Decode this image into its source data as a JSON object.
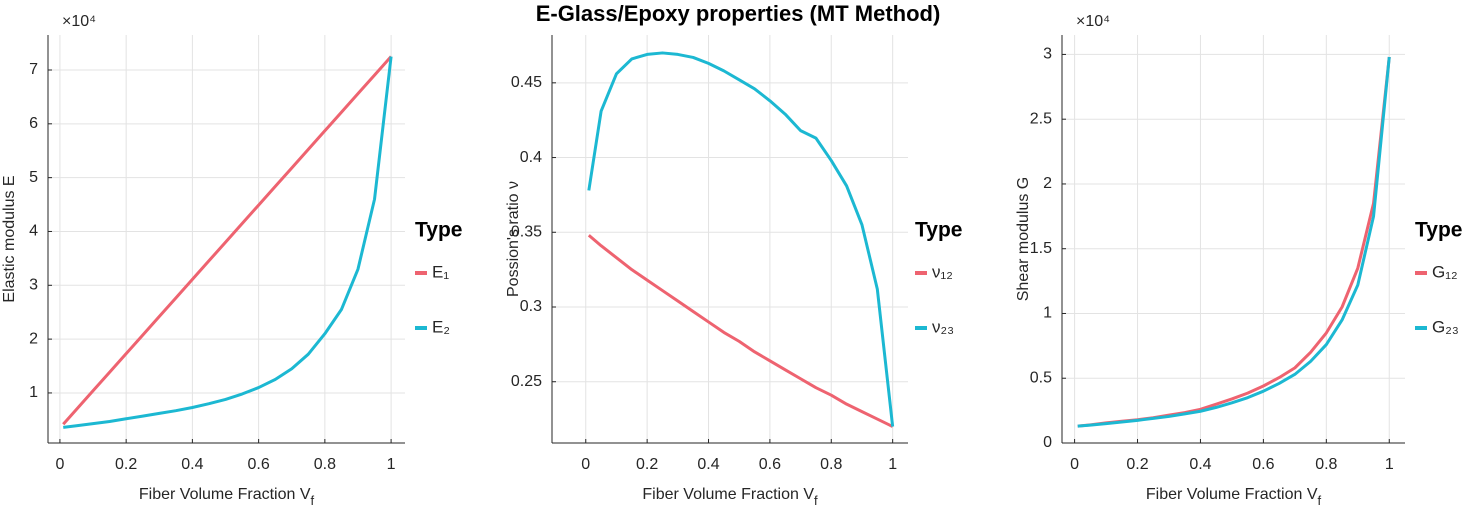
{
  "title": "E-Glass/Epoxy properties (MT Method)",
  "chart_data": [
    {
      "type": "line",
      "ylabel": "Elastic modulus E",
      "xlabel": {
        "text": "Fiber Volume Fraction V",
        "sub": "f"
      },
      "y_exponent": "×10⁴",
      "legend_title": "Type",
      "grid": true,
      "x": [
        0.01,
        0.05,
        0.1,
        0.15,
        0.2,
        0.25,
        0.3,
        0.35,
        0.4,
        0.45,
        0.5,
        0.55,
        0.6,
        0.65,
        0.7,
        0.75,
        0.8,
        0.85,
        0.9,
        0.95,
        1
      ],
      "xlim": [
        -0.036,
        1.042
      ],
      "xticks": [
        0,
        0.2,
        0.4,
        0.6,
        0.8,
        1
      ],
      "ylim": [
        0.07,
        7.65
      ],
      "yticks": [
        1,
        2,
        3,
        4,
        5,
        6,
        7
      ],
      "series": [
        {
          "name": "E₁",
          "color": "#EE6370",
          "values": [
            0.419,
            0.695,
            1.04,
            1.385,
            1.73,
            2.075,
            2.42,
            2.765,
            3.11,
            3.455,
            3.8,
            4.145,
            4.49,
            4.835,
            5.18,
            5.525,
            5.87,
            6.215,
            6.56,
            6.905,
            7.25
          ]
        },
        {
          "name": "E₂",
          "color": "#1CB8D2",
          "values": [
            0.36,
            0.39,
            0.43,
            0.47,
            0.52,
            0.57,
            0.62,
            0.67,
            0.73,
            0.8,
            0.88,
            0.98,
            1.1,
            1.25,
            1.45,
            1.72,
            2.1,
            2.55,
            3.3,
            4.6,
            7.25
          ]
        }
      ]
    },
    {
      "type": "line",
      "ylabel": "Possion's ratio ν",
      "xlabel": {
        "text": "Fiber Volume Fraction V",
        "sub": "f"
      },
      "legend_title": "Type",
      "grid": true,
      "x": [
        0.01,
        0.05,
        0.1,
        0.15,
        0.2,
        0.25,
        0.3,
        0.35,
        0.4,
        0.45,
        0.5,
        0.55,
        0.6,
        0.65,
        0.7,
        0.75,
        0.8,
        0.85,
        0.9,
        0.95,
        1
      ],
      "xlim": [
        -0.11,
        1.05
      ],
      "xticks": [
        0,
        0.2,
        0.4,
        0.6,
        0.8,
        1
      ],
      "ylim": [
        0.209,
        0.482
      ],
      "yticks": [
        0.25,
        0.3,
        0.35,
        0.4,
        0.45
      ],
      "series": [
        {
          "name": "ν₁₂",
          "color": "#EE6370",
          "values": [
            0.348,
            0.341,
            0.333,
            0.325,
            0.318,
            0.311,
            0.304,
            0.297,
            0.29,
            0.283,
            0.277,
            0.27,
            0.264,
            0.258,
            0.252,
            0.246,
            0.241,
            0.235,
            0.23,
            0.225,
            0.22
          ]
        },
        {
          "name": "ν₂₃",
          "color": "#1CB8D2",
          "values": [
            0.378,
            0.431,
            0.456,
            0.466,
            0.469,
            0.47,
            0.469,
            0.467,
            0.463,
            0.458,
            0.452,
            0.446,
            0.438,
            0.429,
            0.418,
            0.413,
            0.398,
            0.381,
            0.355,
            0.312,
            0.22
          ]
        }
      ]
    },
    {
      "type": "line",
      "ylabel": "Shear modulus G",
      "xlabel": {
        "text": "Fiber Volume Fraction V",
        "sub": "f"
      },
      "y_exponent": "×10⁴",
      "legend_title": "Type",
      "grid": true,
      "x": [
        0.01,
        0.05,
        0.1,
        0.15,
        0.2,
        0.25,
        0.3,
        0.35,
        0.4,
        0.45,
        0.5,
        0.55,
        0.6,
        0.65,
        0.7,
        0.75,
        0.8,
        0.85,
        0.9,
        0.95,
        1
      ],
      "xlim": [
        -0.04,
        1.05
      ],
      "xticks": [
        0,
        0.2,
        0.4,
        0.6,
        0.8,
        1
      ],
      "ylim": [
        0,
        3.15
      ],
      "yticks": [
        0,
        0.5,
        1,
        1.5,
        2,
        2.5,
        3
      ],
      "series": [
        {
          "name": "G₁₂",
          "color": "#EE6370",
          "values": [
            0.13,
            0.14,
            0.155,
            0.168,
            0.18,
            0.195,
            0.215,
            0.235,
            0.26,
            0.3,
            0.34,
            0.385,
            0.44,
            0.505,
            0.58,
            0.7,
            0.85,
            1.05,
            1.35,
            1.85,
            2.98
          ]
        },
        {
          "name": "G₂₃",
          "color": "#1CB8D2",
          "values": [
            0.13,
            0.138,
            0.15,
            0.162,
            0.175,
            0.19,
            0.205,
            0.225,
            0.245,
            0.275,
            0.31,
            0.35,
            0.4,
            0.46,
            0.53,
            0.63,
            0.76,
            0.95,
            1.22,
            1.75,
            2.98
          ]
        }
      ]
    }
  ]
}
